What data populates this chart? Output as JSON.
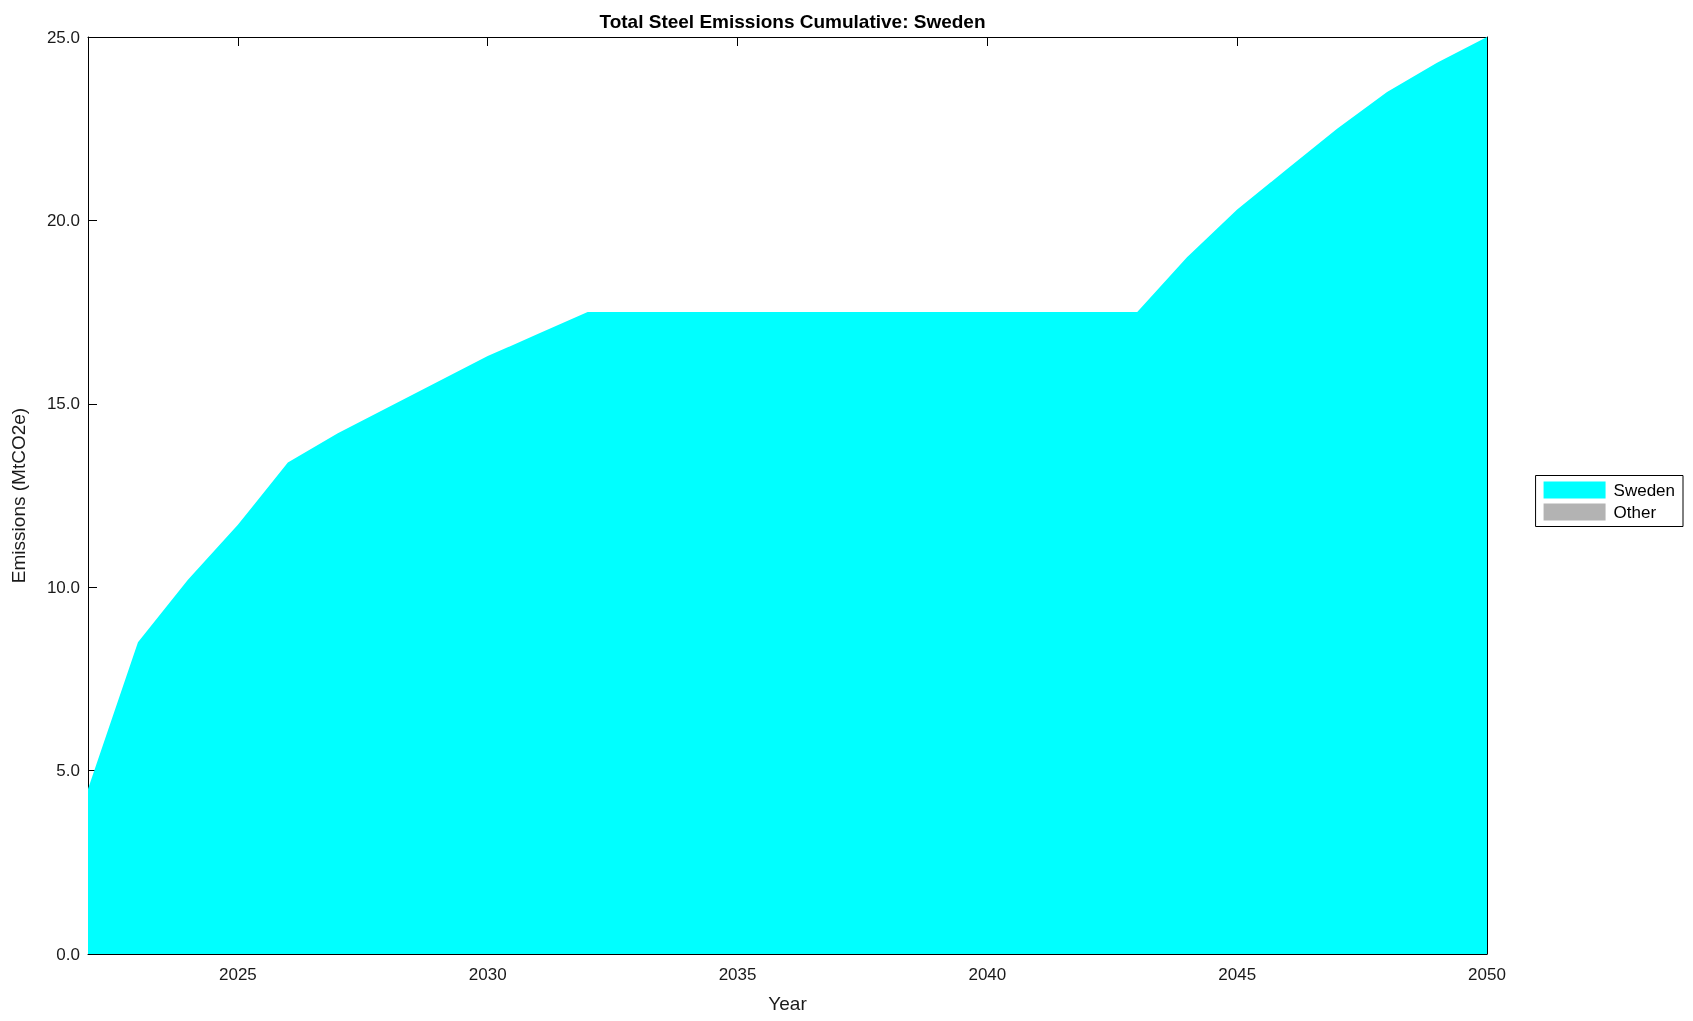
{
  "chart_data": {
    "type": "area",
    "title": "Total Steel Emissions Cumulative: Sweden",
    "xlabel": "Year",
    "ylabel": "Emissions (MtCO2e)",
    "x": [
      2022,
      2023,
      2024,
      2025,
      2026,
      2027,
      2028,
      2029,
      2030,
      2031,
      2032,
      2033,
      2034,
      2035,
      2036,
      2037,
      2038,
      2039,
      2040,
      2041,
      2042,
      2043,
      2044,
      2045,
      2046,
      2047,
      2048,
      2049,
      2050
    ],
    "series": [
      {
        "name": "Sweden",
        "color": "#00ffff",
        "values": [
          4.5,
          8.5,
          10.2,
          11.7,
          13.4,
          14.2,
          14.9,
          15.6,
          16.3,
          16.9,
          17.5,
          17.5,
          17.5,
          17.5,
          17.5,
          17.5,
          17.5,
          17.5,
          17.5,
          17.5,
          17.5,
          17.5,
          19.0,
          20.3,
          21.4,
          22.5,
          23.5,
          24.3,
          25.0
        ]
      },
      {
        "name": "Other",
        "color": "#b3b3b3",
        "values": [
          null,
          null,
          null,
          null,
          null,
          null,
          null,
          null,
          null,
          null,
          null,
          null,
          null,
          null,
          null,
          null,
          null,
          null,
          null,
          null,
          null,
          null,
          null,
          null,
          null,
          null,
          null,
          null,
          null
        ]
      }
    ],
    "xlim": [
      2022,
      2050
    ],
    "xticks": [
      2025,
      2030,
      2035,
      2040,
      2045,
      2050
    ],
    "ylim": [
      0,
      25
    ],
    "yticks": [
      {
        "value": 0,
        "label": "0.0"
      },
      {
        "value": 5,
        "label": "5.0"
      },
      {
        "value": 10,
        "label": "10.0"
      },
      {
        "value": 15,
        "label": "15.0"
      },
      {
        "value": 20,
        "label": "20.0"
      },
      {
        "value": 25,
        "label": "25.0"
      }
    ],
    "legend": "right"
  }
}
